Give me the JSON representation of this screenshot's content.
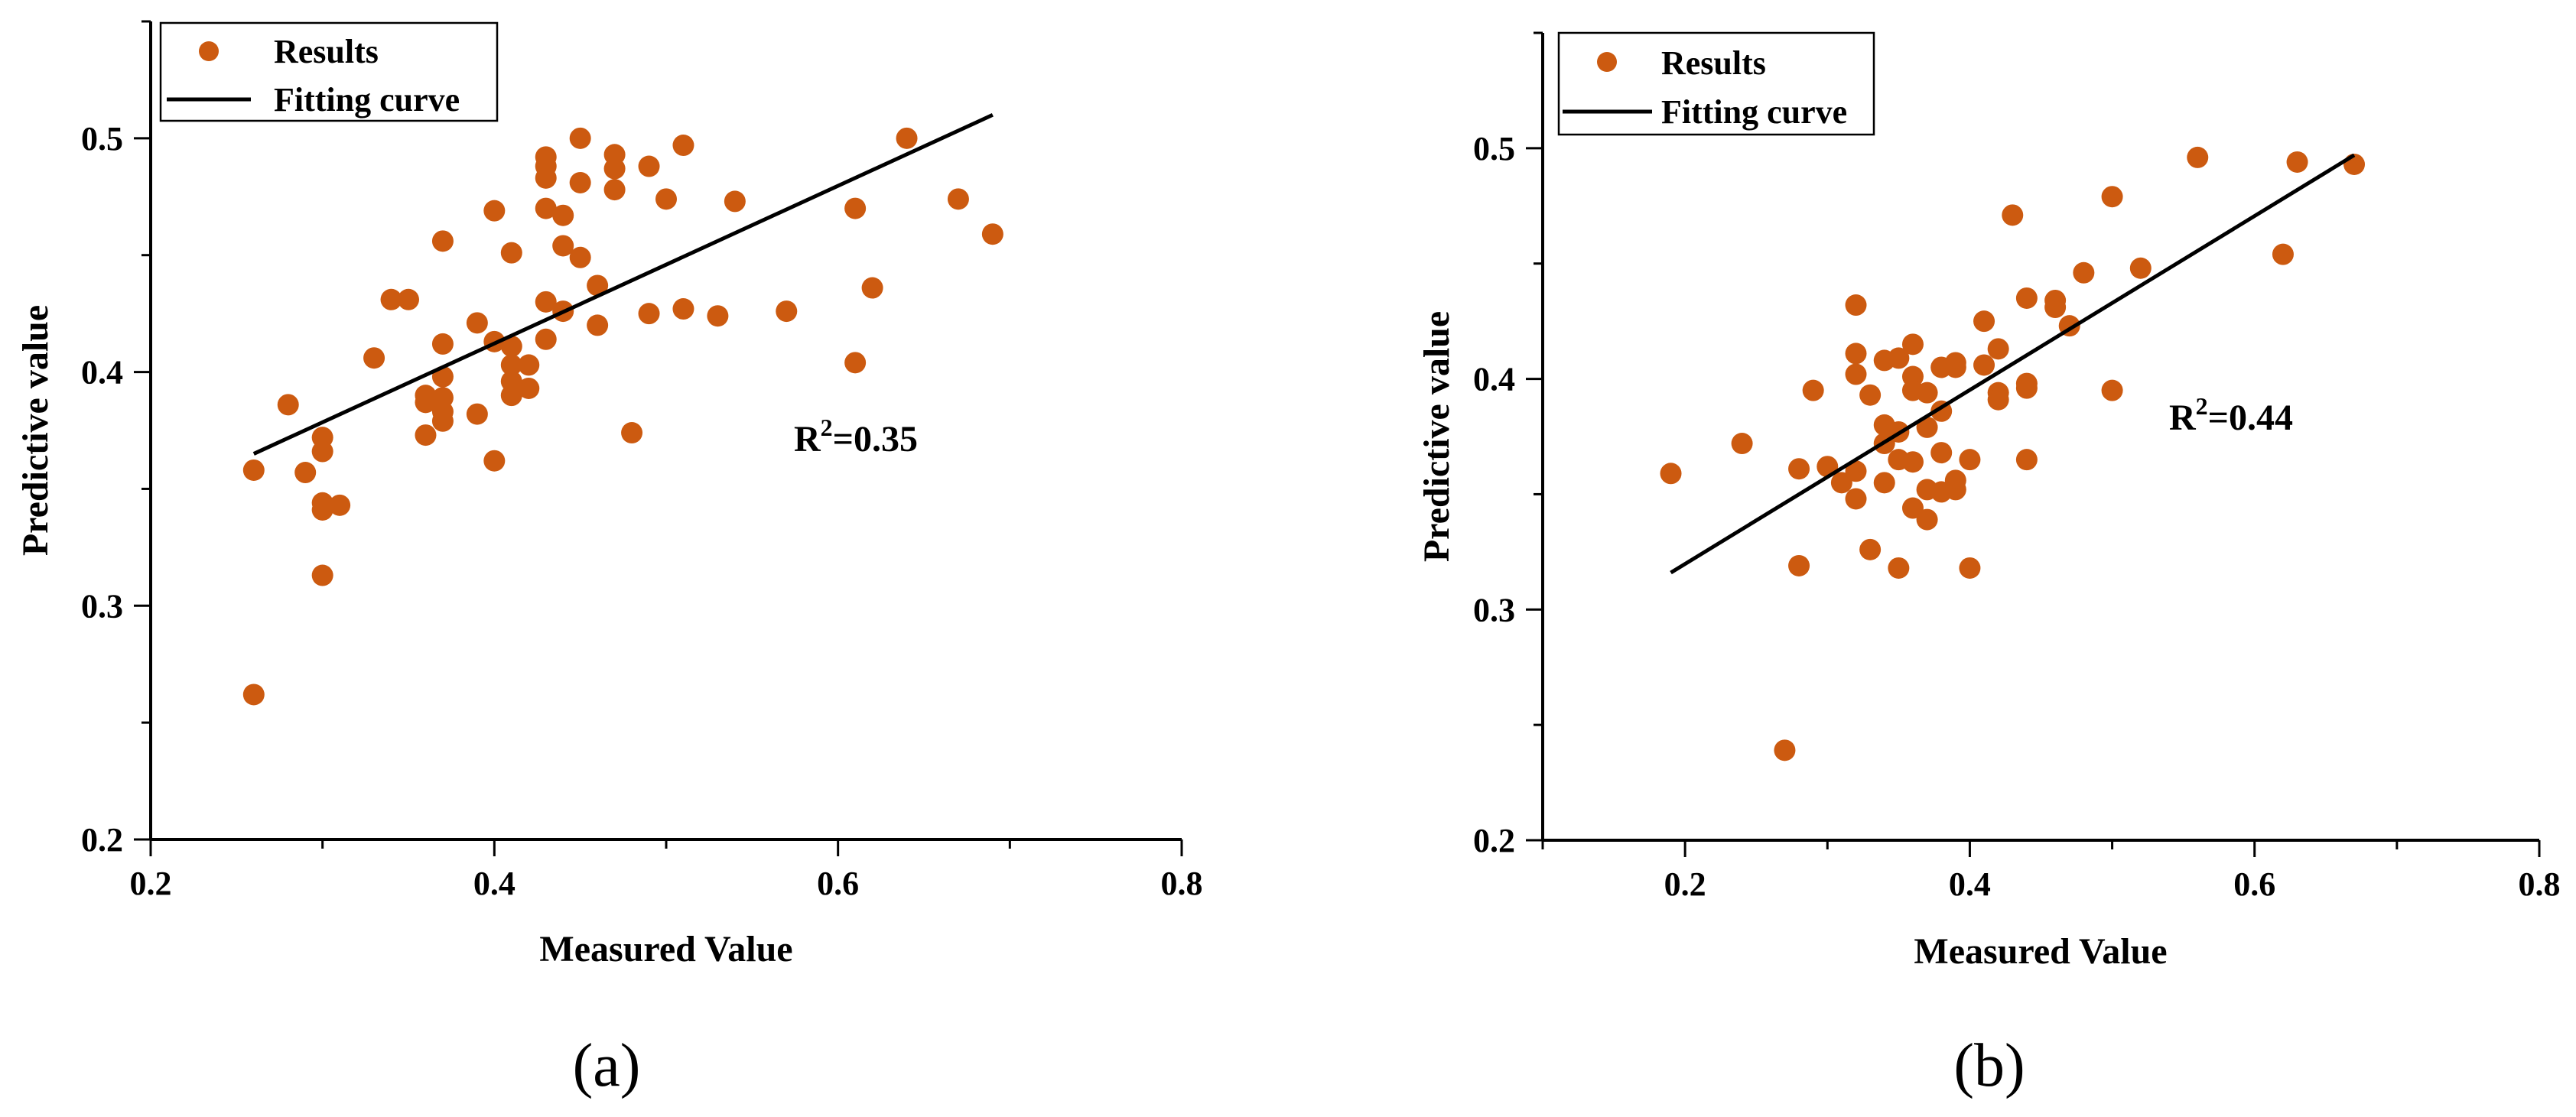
{
  "colors": {
    "points": "#cc5a10",
    "line": "#000000",
    "axis": "#000000"
  },
  "chart_data": [
    {
      "type": "scatter",
      "panel_label": "(a)",
      "xlabel": "Measured Value",
      "ylabel": "Predictive value",
      "xlim": [
        0.2,
        0.8
      ],
      "ylim": [
        0.2,
        0.55
      ],
      "x_ticks": [
        0.2,
        0.4,
        0.6,
        0.8
      ],
      "y_ticks": [
        0.2,
        0.3,
        0.4,
        0.5
      ],
      "legend": {
        "points_label": "Results",
        "line_label": "Fitting curve",
        "position": "top-left"
      },
      "annotation": {
        "text_base": "R",
        "text_sup": "2",
        "text_tail": "=0.35"
      },
      "fit_line": {
        "x": [
          0.26,
          0.69
        ],
        "y": [
          0.365,
          0.51
        ]
      },
      "series": [
        {
          "name": "Results",
          "points": [
            [
              0.26,
              0.358
            ],
            [
              0.26,
              0.262
            ],
            [
              0.28,
              0.386
            ],
            [
              0.29,
              0.357
            ],
            [
              0.3,
              0.372
            ],
            [
              0.3,
              0.366
            ],
            [
              0.3,
              0.344
            ],
            [
              0.3,
              0.341
            ],
            [
              0.3,
              0.313
            ],
            [
              0.31,
              0.343
            ],
            [
              0.33,
              0.406
            ],
            [
              0.34,
              0.431
            ],
            [
              0.35,
              0.431
            ],
            [
              0.36,
              0.39
            ],
            [
              0.36,
              0.387
            ],
            [
              0.36,
              0.373
            ],
            [
              0.37,
              0.456
            ],
            [
              0.37,
              0.412
            ],
            [
              0.37,
              0.398
            ],
            [
              0.37,
              0.389
            ],
            [
              0.37,
              0.383
            ],
            [
              0.37,
              0.379
            ],
            [
              0.39,
              0.421
            ],
            [
              0.39,
              0.382
            ],
            [
              0.4,
              0.469
            ],
            [
              0.4,
              0.413
            ],
            [
              0.4,
              0.362
            ],
            [
              0.41,
              0.451
            ],
            [
              0.41,
              0.411
            ],
            [
              0.41,
              0.403
            ],
            [
              0.41,
              0.396
            ],
            [
              0.41,
              0.39
            ],
            [
              0.42,
              0.403
            ],
            [
              0.42,
              0.393
            ],
            [
              0.43,
              0.492
            ],
            [
              0.43,
              0.488
            ],
            [
              0.43,
              0.483
            ],
            [
              0.43,
              0.47
            ],
            [
              0.43,
              0.43
            ],
            [
              0.43,
              0.414
            ],
            [
              0.44,
              0.467
            ],
            [
              0.44,
              0.454
            ],
            [
              0.44,
              0.426
            ],
            [
              0.45,
              0.5
            ],
            [
              0.45,
              0.481
            ],
            [
              0.45,
              0.449
            ],
            [
              0.46,
              0.437
            ],
            [
              0.46,
              0.42
            ],
            [
              0.47,
              0.493
            ],
            [
              0.47,
              0.487
            ],
            [
              0.47,
              0.478
            ],
            [
              0.48,
              0.374
            ],
            [
              0.49,
              0.488
            ],
            [
              0.49,
              0.425
            ],
            [
              0.5,
              0.474
            ],
            [
              0.51,
              0.497
            ],
            [
              0.51,
              0.427
            ],
            [
              0.53,
              0.424
            ],
            [
              0.54,
              0.473
            ],
            [
              0.57,
              0.426
            ],
            [
              0.61,
              0.47
            ],
            [
              0.61,
              0.404
            ],
            [
              0.62,
              0.436
            ],
            [
              0.64,
              0.5
            ],
            [
              0.67,
              0.474
            ],
            [
              0.69,
              0.459
            ]
          ]
        }
      ]
    },
    {
      "type": "scatter",
      "panel_label": "(b)",
      "xlabel": "Measured Value",
      "ylabel": "Predictive value",
      "xlim": [
        0.1,
        0.8
      ],
      "ylim": [
        0.2,
        0.55
      ],
      "x_ticks": [
        0.2,
        0.4,
        0.6,
        0.8
      ],
      "y_ticks": [
        0.2,
        0.3,
        0.4,
        0.5
      ],
      "legend": {
        "points_label": "Results",
        "line_label": "Fitting curve",
        "position": "top-left"
      },
      "annotation": {
        "text_base": "R",
        "text_sup": "2",
        "text_tail": "=0.44"
      },
      "fit_line": {
        "x": [
          0.19,
          0.67
        ],
        "y": [
          0.316,
          0.497
        ]
      },
      "series": [
        {
          "name": "Results",
          "points": [
            [
              0.19,
              0.359
            ],
            [
              0.24,
              0.372
            ],
            [
              0.27,
              0.239
            ],
            [
              0.28,
              0.361
            ],
            [
              0.28,
              0.319
            ],
            [
              0.29,
              0.395
            ],
            [
              0.3,
              0.362
            ],
            [
              0.31,
              0.355
            ],
            [
              0.32,
              0.432
            ],
            [
              0.32,
              0.411
            ],
            [
              0.32,
              0.402
            ],
            [
              0.32,
              0.36
            ],
            [
              0.32,
              0.348
            ],
            [
              0.33,
              0.393
            ],
            [
              0.33,
              0.326
            ],
            [
              0.34,
              0.408
            ],
            [
              0.34,
              0.38
            ],
            [
              0.34,
              0.372
            ],
            [
              0.34,
              0.355
            ],
            [
              0.35,
              0.409
            ],
            [
              0.35,
              0.377
            ],
            [
              0.35,
              0.365
            ],
            [
              0.35,
              0.318
            ],
            [
              0.36,
              0.415
            ],
            [
              0.36,
              0.401
            ],
            [
              0.36,
              0.395
            ],
            [
              0.36,
              0.364
            ],
            [
              0.36,
              0.344
            ],
            [
              0.37,
              0.394
            ],
            [
              0.37,
              0.379
            ],
            [
              0.37,
              0.352
            ],
            [
              0.37,
              0.339
            ],
            [
              0.38,
              0.405
            ],
            [
              0.38,
              0.386
            ],
            [
              0.38,
              0.368
            ],
            [
              0.38,
              0.351
            ],
            [
              0.39,
              0.407
            ],
            [
              0.39,
              0.405
            ],
            [
              0.39,
              0.356
            ],
            [
              0.39,
              0.352
            ],
            [
              0.4,
              0.365
            ],
            [
              0.4,
              0.318
            ],
            [
              0.41,
              0.425
            ],
            [
              0.41,
              0.406
            ],
            [
              0.42,
              0.413
            ],
            [
              0.42,
              0.394
            ],
            [
              0.42,
              0.391
            ],
            [
              0.43,
              0.471
            ],
            [
              0.44,
              0.435
            ],
            [
              0.44,
              0.398
            ],
            [
              0.44,
              0.396
            ],
            [
              0.44,
              0.365
            ],
            [
              0.46,
              0.434
            ],
            [
              0.46,
              0.431
            ],
            [
              0.47,
              0.423
            ],
            [
              0.48,
              0.446
            ],
            [
              0.5,
              0.479
            ],
            [
              0.5,
              0.395
            ],
            [
              0.52,
              0.448
            ],
            [
              0.56,
              0.496
            ],
            [
              0.62,
              0.454
            ],
            [
              0.63,
              0.494
            ],
            [
              0.67,
              0.493
            ]
          ]
        }
      ]
    }
  ]
}
